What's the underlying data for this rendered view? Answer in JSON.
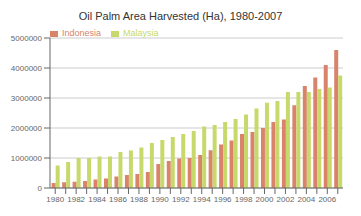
{
  "chart_data": {
    "type": "bar",
    "title": "Oil Palm Area Harvested (Ha), 1980-2007",
    "categories": [
      "1980",
      null,
      "1982",
      null,
      "1984",
      null,
      "1986",
      null,
      "1988",
      null,
      "1990",
      null,
      "1992",
      null,
      "1994",
      null,
      "1996",
      null,
      "1998",
      null,
      "2000",
      null,
      "2002",
      null,
      "2004",
      null,
      "2006",
      null
    ],
    "series": [
      {
        "name": "Indonesia",
        "color": "#d9836b",
        "values": [
          170000,
          190000,
          210000,
          230000,
          280000,
          320000,
          380000,
          430000,
          470000,
          530000,
          800000,
          900000,
          980000,
          1000000,
          1100000,
          1260000,
          1450000,
          1580000,
          1800000,
          1870000,
          2000000,
          2200000,
          2280000,
          2760000,
          3400000,
          3680000,
          4100000,
          4600000
        ]
      },
      {
        "name": "Malaysia",
        "color": "#c8d96c",
        "values": [
          750000,
          870000,
          1000000,
          1000000,
          1050000,
          1050000,
          1200000,
          1250000,
          1350000,
          1500000,
          1600000,
          1700000,
          1800000,
          1900000,
          2050000,
          2100000,
          2200000,
          2300000,
          2450000,
          2650000,
          2840000,
          2900000,
          3200000,
          3200000,
          3200000,
          3300000,
          3350000,
          3750000
        ]
      }
    ],
    "ylim": [
      0,
      5000000
    ],
    "yticks": [
      0,
      1000000,
      2000000,
      3000000,
      4000000,
      5000000
    ],
    "grid": true,
    "legend": "upper left"
  }
}
